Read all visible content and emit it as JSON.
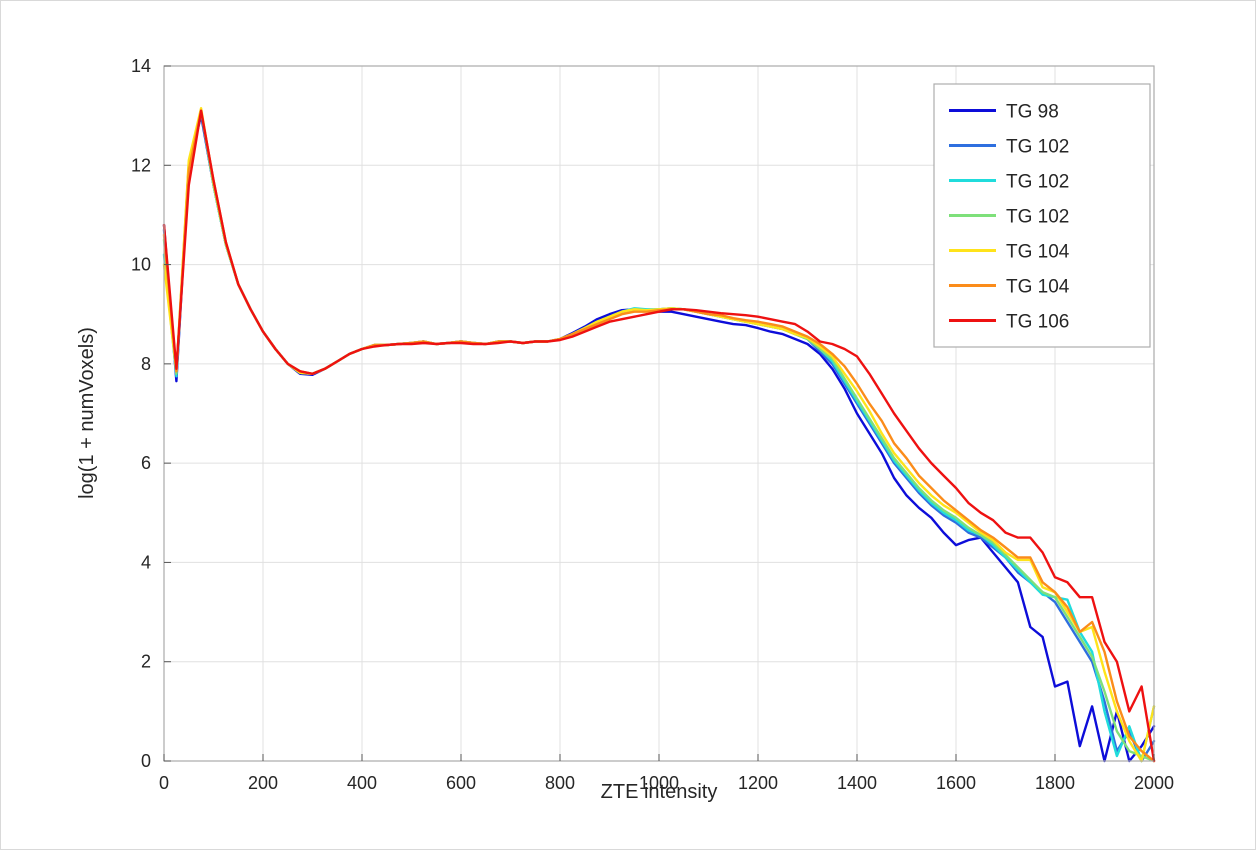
{
  "chart_data": {
    "type": "line",
    "title": "",
    "xlabel": "ZTE intensity",
    "ylabel": "log(1 + numVoxels)",
    "xlim": [
      0,
      2000
    ],
    "ylim": [
      0,
      14
    ],
    "x_ticks": [
      0,
      200,
      400,
      600,
      800,
      1000,
      1200,
      1400,
      1600,
      1800,
      2000
    ],
    "y_ticks": [
      0,
      2,
      4,
      6,
      8,
      10,
      12,
      14
    ],
    "grid": true,
    "legend_position": "northeast",
    "x": [
      0,
      25,
      50,
      75,
      100,
      125,
      150,
      175,
      200,
      225,
      250,
      275,
      300,
      325,
      350,
      375,
      400,
      425,
      450,
      475,
      500,
      525,
      550,
      575,
      600,
      625,
      650,
      675,
      700,
      725,
      750,
      775,
      800,
      825,
      850,
      875,
      900,
      925,
      950,
      975,
      1000,
      1025,
      1050,
      1075,
      1100,
      1125,
      1150,
      1175,
      1200,
      1225,
      1250,
      1275,
      1300,
      1325,
      1350,
      1375,
      1400,
      1425,
      1450,
      1475,
      1500,
      1525,
      1550,
      1575,
      1600,
      1625,
      1650,
      1675,
      1700,
      1725,
      1750,
      1775,
      1800,
      1825,
      1850,
      1875,
      1900,
      1925,
      1950,
      1975,
      2000
    ],
    "series": [
      {
        "name": "TG 98",
        "color": "#0d0dd9",
        "values": [
          10.8,
          7.65,
          12.0,
          13.0,
          11.6,
          10.4,
          9.6,
          9.1,
          8.65,
          8.3,
          8.0,
          7.8,
          7.78,
          7.9,
          8.05,
          8.2,
          8.3,
          8.38,
          8.38,
          8.4,
          8.42,
          8.45,
          8.4,
          8.42,
          8.45,
          8.42,
          8.4,
          8.45,
          8.45,
          8.42,
          8.45,
          8.45,
          8.5,
          8.62,
          8.75,
          8.9,
          9.0,
          9.08,
          9.1,
          9.08,
          9.05,
          9.05,
          9.0,
          8.95,
          8.9,
          8.85,
          8.8,
          8.78,
          8.72,
          8.65,
          8.6,
          8.5,
          8.4,
          8.2,
          7.9,
          7.5,
          7.0,
          6.6,
          6.2,
          5.7,
          5.35,
          5.1,
          4.9,
          4.6,
          4.35,
          4.45,
          4.5,
          4.2,
          3.9,
          3.6,
          2.7,
          2.5,
          1.5,
          1.6,
          0.3,
          1.1,
          0.0,
          1.0,
          0.0,
          0.3,
          0.7
        ]
      },
      {
        "name": "TG 102",
        "color": "#2e6fdf",
        "values": [
          10.7,
          7.8,
          12.0,
          13.05,
          11.6,
          10.4,
          9.6,
          9.1,
          8.65,
          8.3,
          8.0,
          7.82,
          7.8,
          7.9,
          8.05,
          8.2,
          8.3,
          8.38,
          8.38,
          8.4,
          8.42,
          8.45,
          8.4,
          8.42,
          8.45,
          8.42,
          8.4,
          8.45,
          8.45,
          8.42,
          8.45,
          8.45,
          8.5,
          8.6,
          8.72,
          8.85,
          8.95,
          9.05,
          9.1,
          9.08,
          9.1,
          9.12,
          9.1,
          9.05,
          9.0,
          8.95,
          8.9,
          8.85,
          8.8,
          8.75,
          8.7,
          8.6,
          8.5,
          8.25,
          8.0,
          7.6,
          7.2,
          6.8,
          6.4,
          6.0,
          5.7,
          5.4,
          5.15,
          4.95,
          4.8,
          4.6,
          4.5,
          4.3,
          4.1,
          3.8,
          3.6,
          3.4,
          3.2,
          2.8,
          2.4,
          2.0,
          1.2,
          0.2,
          0.6,
          0.0,
          0.4
        ]
      },
      {
        "name": "TG 102",
        "color": "#20dcdc",
        "values": [
          10.2,
          7.75,
          12.0,
          13.1,
          11.6,
          10.4,
          9.6,
          9.1,
          8.65,
          8.3,
          8.0,
          7.82,
          7.8,
          7.9,
          8.05,
          8.2,
          8.3,
          8.38,
          8.38,
          8.4,
          8.42,
          8.45,
          8.4,
          8.42,
          8.45,
          8.42,
          8.4,
          8.45,
          8.45,
          8.42,
          8.45,
          8.45,
          8.5,
          8.6,
          8.72,
          8.85,
          8.95,
          9.05,
          9.12,
          9.1,
          9.1,
          9.12,
          9.1,
          9.05,
          9.0,
          8.95,
          8.9,
          8.85,
          8.8,
          8.75,
          8.7,
          8.6,
          8.5,
          8.3,
          8.05,
          7.65,
          7.25,
          6.85,
          6.45,
          6.05,
          5.75,
          5.45,
          5.2,
          5.0,
          4.85,
          4.65,
          4.55,
          4.35,
          4.1,
          3.85,
          3.6,
          3.35,
          3.3,
          3.25,
          2.6,
          2.2,
          1.0,
          0.1,
          0.7,
          0.0,
          1.1
        ]
      },
      {
        "name": "TG 102",
        "color": "#7ee07a",
        "values": [
          10.5,
          7.8,
          12.05,
          13.1,
          11.6,
          10.4,
          9.6,
          9.1,
          8.65,
          8.3,
          8.0,
          7.82,
          7.8,
          7.9,
          8.05,
          8.2,
          8.3,
          8.38,
          8.38,
          8.4,
          8.42,
          8.45,
          8.4,
          8.42,
          8.45,
          8.42,
          8.4,
          8.45,
          8.45,
          8.42,
          8.45,
          8.45,
          8.5,
          8.6,
          8.72,
          8.85,
          8.95,
          9.05,
          9.1,
          9.08,
          9.1,
          9.12,
          9.1,
          9.05,
          9.0,
          8.95,
          8.9,
          8.85,
          8.8,
          8.75,
          8.7,
          8.6,
          8.5,
          8.3,
          8.1,
          7.7,
          7.3,
          6.9,
          6.5,
          6.1,
          5.8,
          5.5,
          5.25,
          5.05,
          4.9,
          4.7,
          4.55,
          4.4,
          4.15,
          3.9,
          3.65,
          3.4,
          3.3,
          2.9,
          2.5,
          2.1,
          1.4,
          0.6,
          0.2,
          0.1,
          0.0
        ]
      },
      {
        "name": "TG 104",
        "color": "#ffe31a",
        "values": [
          10.0,
          7.85,
          12.1,
          13.15,
          11.65,
          10.42,
          9.6,
          9.1,
          8.65,
          8.3,
          8.0,
          7.82,
          7.8,
          7.9,
          8.05,
          8.2,
          8.3,
          8.38,
          8.38,
          8.4,
          8.42,
          8.45,
          8.4,
          8.42,
          8.45,
          8.42,
          8.4,
          8.45,
          8.45,
          8.42,
          8.45,
          8.45,
          8.5,
          8.6,
          8.72,
          8.85,
          8.95,
          9.05,
          9.1,
          9.08,
          9.1,
          9.12,
          9.1,
          9.05,
          9.0,
          8.95,
          8.9,
          8.85,
          8.8,
          8.75,
          8.7,
          8.6,
          8.52,
          8.35,
          8.15,
          7.8,
          7.45,
          7.05,
          6.6,
          6.2,
          5.9,
          5.6,
          5.35,
          5.15,
          5.0,
          4.8,
          4.6,
          4.45,
          4.2,
          4.05,
          4.05,
          3.5,
          3.4,
          3.0,
          2.6,
          2.7,
          1.8,
          1.0,
          0.4,
          0.0,
          1.1
        ]
      },
      {
        "name": "TG 104",
        "color": "#fb8c1a",
        "values": [
          10.6,
          7.85,
          11.9,
          13.1,
          11.7,
          10.45,
          9.6,
          9.1,
          8.65,
          8.3,
          8.0,
          7.85,
          7.8,
          7.9,
          8.05,
          8.2,
          8.3,
          8.38,
          8.38,
          8.4,
          8.42,
          8.45,
          8.4,
          8.42,
          8.45,
          8.42,
          8.4,
          8.45,
          8.45,
          8.42,
          8.45,
          8.45,
          8.5,
          8.6,
          8.7,
          8.8,
          8.9,
          9.0,
          9.05,
          9.05,
          9.08,
          9.1,
          9.1,
          9.05,
          9.0,
          8.98,
          8.92,
          8.88,
          8.85,
          8.8,
          8.75,
          8.65,
          8.55,
          8.4,
          8.2,
          7.95,
          7.6,
          7.2,
          6.85,
          6.4,
          6.1,
          5.75,
          5.5,
          5.25,
          5.05,
          4.85,
          4.65,
          4.5,
          4.3,
          4.1,
          4.1,
          3.6,
          3.4,
          3.1,
          2.6,
          2.8,
          2.2,
          1.2,
          0.5,
          0.2,
          0.0
        ]
      },
      {
        "name": "TG 106",
        "color": "#ee1111",
        "values": [
          10.8,
          7.9,
          11.6,
          13.1,
          11.7,
          10.45,
          9.6,
          9.1,
          8.65,
          8.3,
          8.0,
          7.85,
          7.8,
          7.9,
          8.05,
          8.2,
          8.3,
          8.35,
          8.38,
          8.4,
          8.4,
          8.42,
          8.4,
          8.42,
          8.42,
          8.4,
          8.4,
          8.42,
          8.45,
          8.42,
          8.45,
          8.45,
          8.48,
          8.55,
          8.65,
          8.75,
          8.85,
          8.9,
          8.95,
          9.0,
          9.05,
          9.1,
          9.1,
          9.08,
          9.05,
          9.02,
          9.0,
          8.98,
          8.95,
          8.9,
          8.85,
          8.8,
          8.65,
          8.45,
          8.4,
          8.3,
          8.15,
          7.8,
          7.4,
          7.0,
          6.65,
          6.3,
          6.0,
          5.75,
          5.5,
          5.2,
          5.0,
          4.85,
          4.6,
          4.5,
          4.5,
          4.2,
          3.7,
          3.6,
          3.3,
          3.3,
          2.4,
          2.0,
          1.0,
          1.5,
          0.0
        ]
      }
    ],
    "style": {
      "grid_color": "#e0e0e0",
      "axis_box_color": "#ababab",
      "tick_color": "#555555",
      "text_color": "#262626",
      "legend_border_color": "#adadad",
      "legend_background": "#ffffff",
      "line_width": 2.4
    }
  }
}
